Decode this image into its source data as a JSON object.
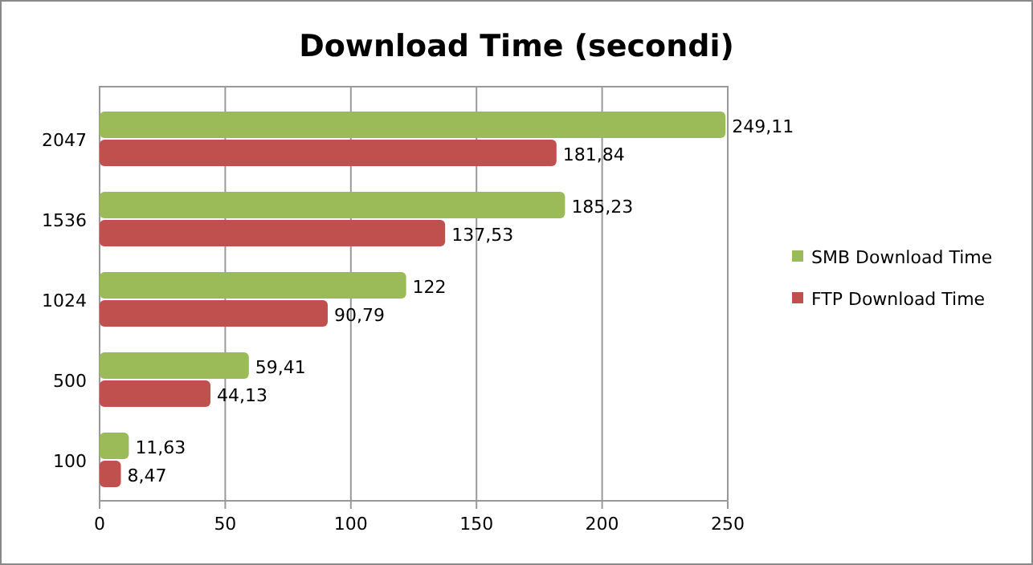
{
  "chart_data": {
    "type": "bar",
    "orientation": "horizontal",
    "title": "Download Time (secondi)",
    "categories": [
      "2047",
      "1536",
      "1024",
      "500",
      "100"
    ],
    "series": [
      {
        "name": "SMB Download Time",
        "color": "#9bbb59",
        "values": [
          249.11,
          185.23,
          122,
          59.41,
          11.63
        ],
        "value_labels": [
          "249,11",
          "185,23",
          "122",
          "59,41",
          "11,63"
        ]
      },
      {
        "name": "FTP Download Time",
        "color": "#c0504d",
        "values": [
          181.84,
          137.53,
          90.79,
          44.13,
          8.47
        ],
        "value_labels": [
          "181,84",
          "137,53",
          "90,79",
          "44,13",
          "8,47"
        ]
      }
    ],
    "xlim": [
      0,
      250
    ],
    "xticks": [
      0,
      50,
      100,
      150,
      200,
      250
    ],
    "grid": "x",
    "legend": "right"
  }
}
